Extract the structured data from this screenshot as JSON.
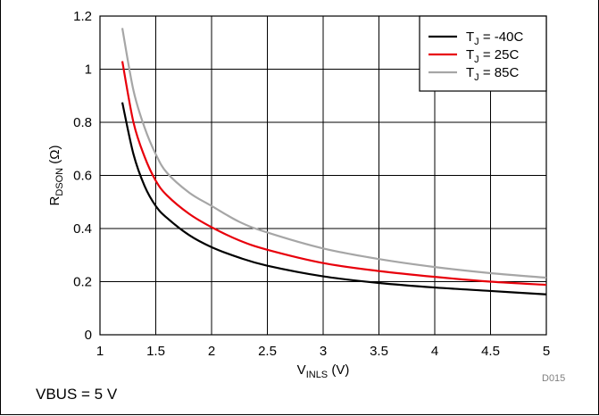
{
  "chart_data": {
    "type": "line",
    "ylabel_main": "R",
    "ylabel_sub": "DSON",
    "ylabel_unit": " (Ω)",
    "xlabel_main": "V",
    "xlabel_sub": "INLS",
    "xlabel_unit": " (V)",
    "xlim": [
      1,
      5
    ],
    "ylim": [
      0,
      1.2
    ],
    "x_ticks": [
      "1",
      "1.5",
      "2",
      "2.5",
      "3",
      "3.5",
      "4",
      "4.5",
      "5"
    ],
    "y_ticks": [
      "0",
      "0.2",
      "0.4",
      "0.6",
      "0.8",
      "1",
      "1.2"
    ],
    "grid": true,
    "legend_position": "top-right",
    "x": [
      1.2,
      1.3,
      1.4,
      1.5,
      1.6,
      1.8,
      2.0,
      2.25,
      2.5,
      3.0,
      3.5,
      4.0,
      4.5,
      5.0
    ],
    "series": [
      {
        "legend_prefix": "T",
        "legend_sub": "J",
        "legend_suffix": " = -40C",
        "color": "#000000",
        "values": [
          0.875,
          0.68,
          0.56,
          0.485,
          0.44,
          0.375,
          0.33,
          0.29,
          0.26,
          0.22,
          0.195,
          0.178,
          0.165,
          0.152
        ]
      },
      {
        "legend_prefix": "T",
        "legend_sub": "J",
        "legend_suffix": " = 25C",
        "color": "#e8000b",
        "values": [
          1.03,
          0.8,
          0.67,
          0.58,
          0.525,
          0.455,
          0.405,
          0.355,
          0.32,
          0.27,
          0.24,
          0.218,
          0.2,
          0.188
        ]
      },
      {
        "legend_prefix": "T",
        "legend_sub": "J",
        "legend_suffix": " = 85C",
        "color": "#a6a6a6",
        "values": [
          1.155,
          0.92,
          0.78,
          0.68,
          0.61,
          0.535,
          0.485,
          0.425,
          0.385,
          0.325,
          0.285,
          0.255,
          0.232,
          0.215
        ]
      }
    ]
  },
  "footnote": "VBUS = 5 V",
  "figure_code": "D015"
}
